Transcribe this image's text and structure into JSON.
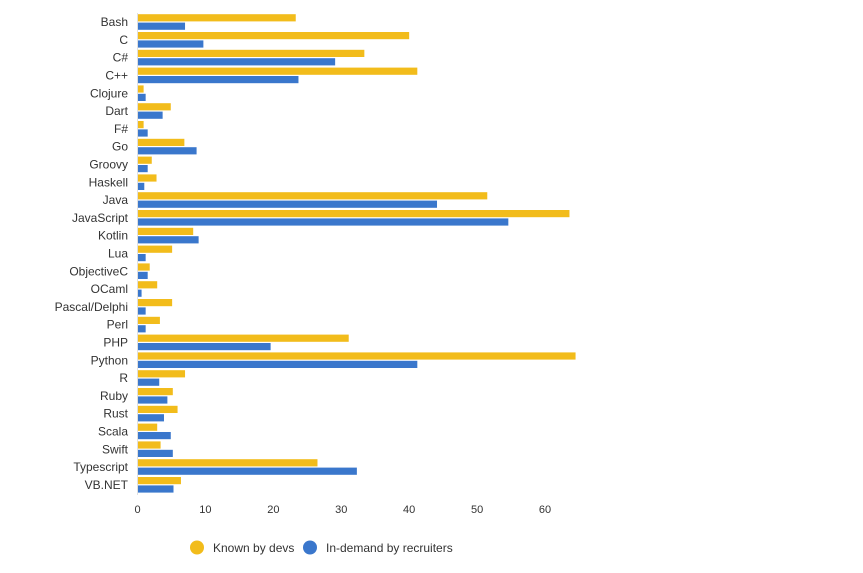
{
  "chart_data": {
    "type": "bar",
    "orientation": "horizontal",
    "categories": [
      "Bash",
      "C",
      "C#",
      "C++",
      "Clojure",
      "Dart",
      "F#",
      "Go",
      "Groovy",
      "Haskell",
      "Java",
      "JavaScript",
      "Kotlin",
      "Lua",
      "ObjectiveC",
      "OCaml",
      "Pascal/Delphi",
      "Perl",
      "PHP",
      "Python",
      "R",
      "Ruby",
      "Rust",
      "Scala",
      "Swift",
      "Typescript",
      "VB.NET"
    ],
    "series": [
      {
        "name": "Known by devs",
        "color": "#f2bc1b",
        "values": [
          23.3,
          40.0,
          33.4,
          41.2,
          0.9,
          4.9,
          0.9,
          6.9,
          2.1,
          2.8,
          51.5,
          63.6,
          8.2,
          5.1,
          1.8,
          2.9,
          5.1,
          3.3,
          31.1,
          64.5,
          7.0,
          5.2,
          5.9,
          2.9,
          3.4,
          26.5,
          6.4
        ]
      },
      {
        "name": "In-demand by recruiters",
        "color": "#3a77cc",
        "values": [
          7.0,
          9.7,
          29.1,
          23.7,
          1.2,
          3.7,
          1.5,
          8.7,
          1.5,
          1.0,
          44.1,
          54.6,
          9.0,
          1.2,
          1.5,
          0.6,
          1.2,
          1.2,
          19.6,
          41.2,
          3.2,
          4.4,
          3.9,
          4.9,
          5.2,
          32.3,
          5.3
        ]
      }
    ],
    "xlim": [
      0,
      65
    ],
    "xticks": [
      0,
      10,
      20,
      30,
      40,
      50,
      60
    ],
    "grid": false,
    "legend_position": "bottom-center",
    "legend_marker": "circle",
    "title": "",
    "xlabel": "",
    "ylabel": ""
  }
}
